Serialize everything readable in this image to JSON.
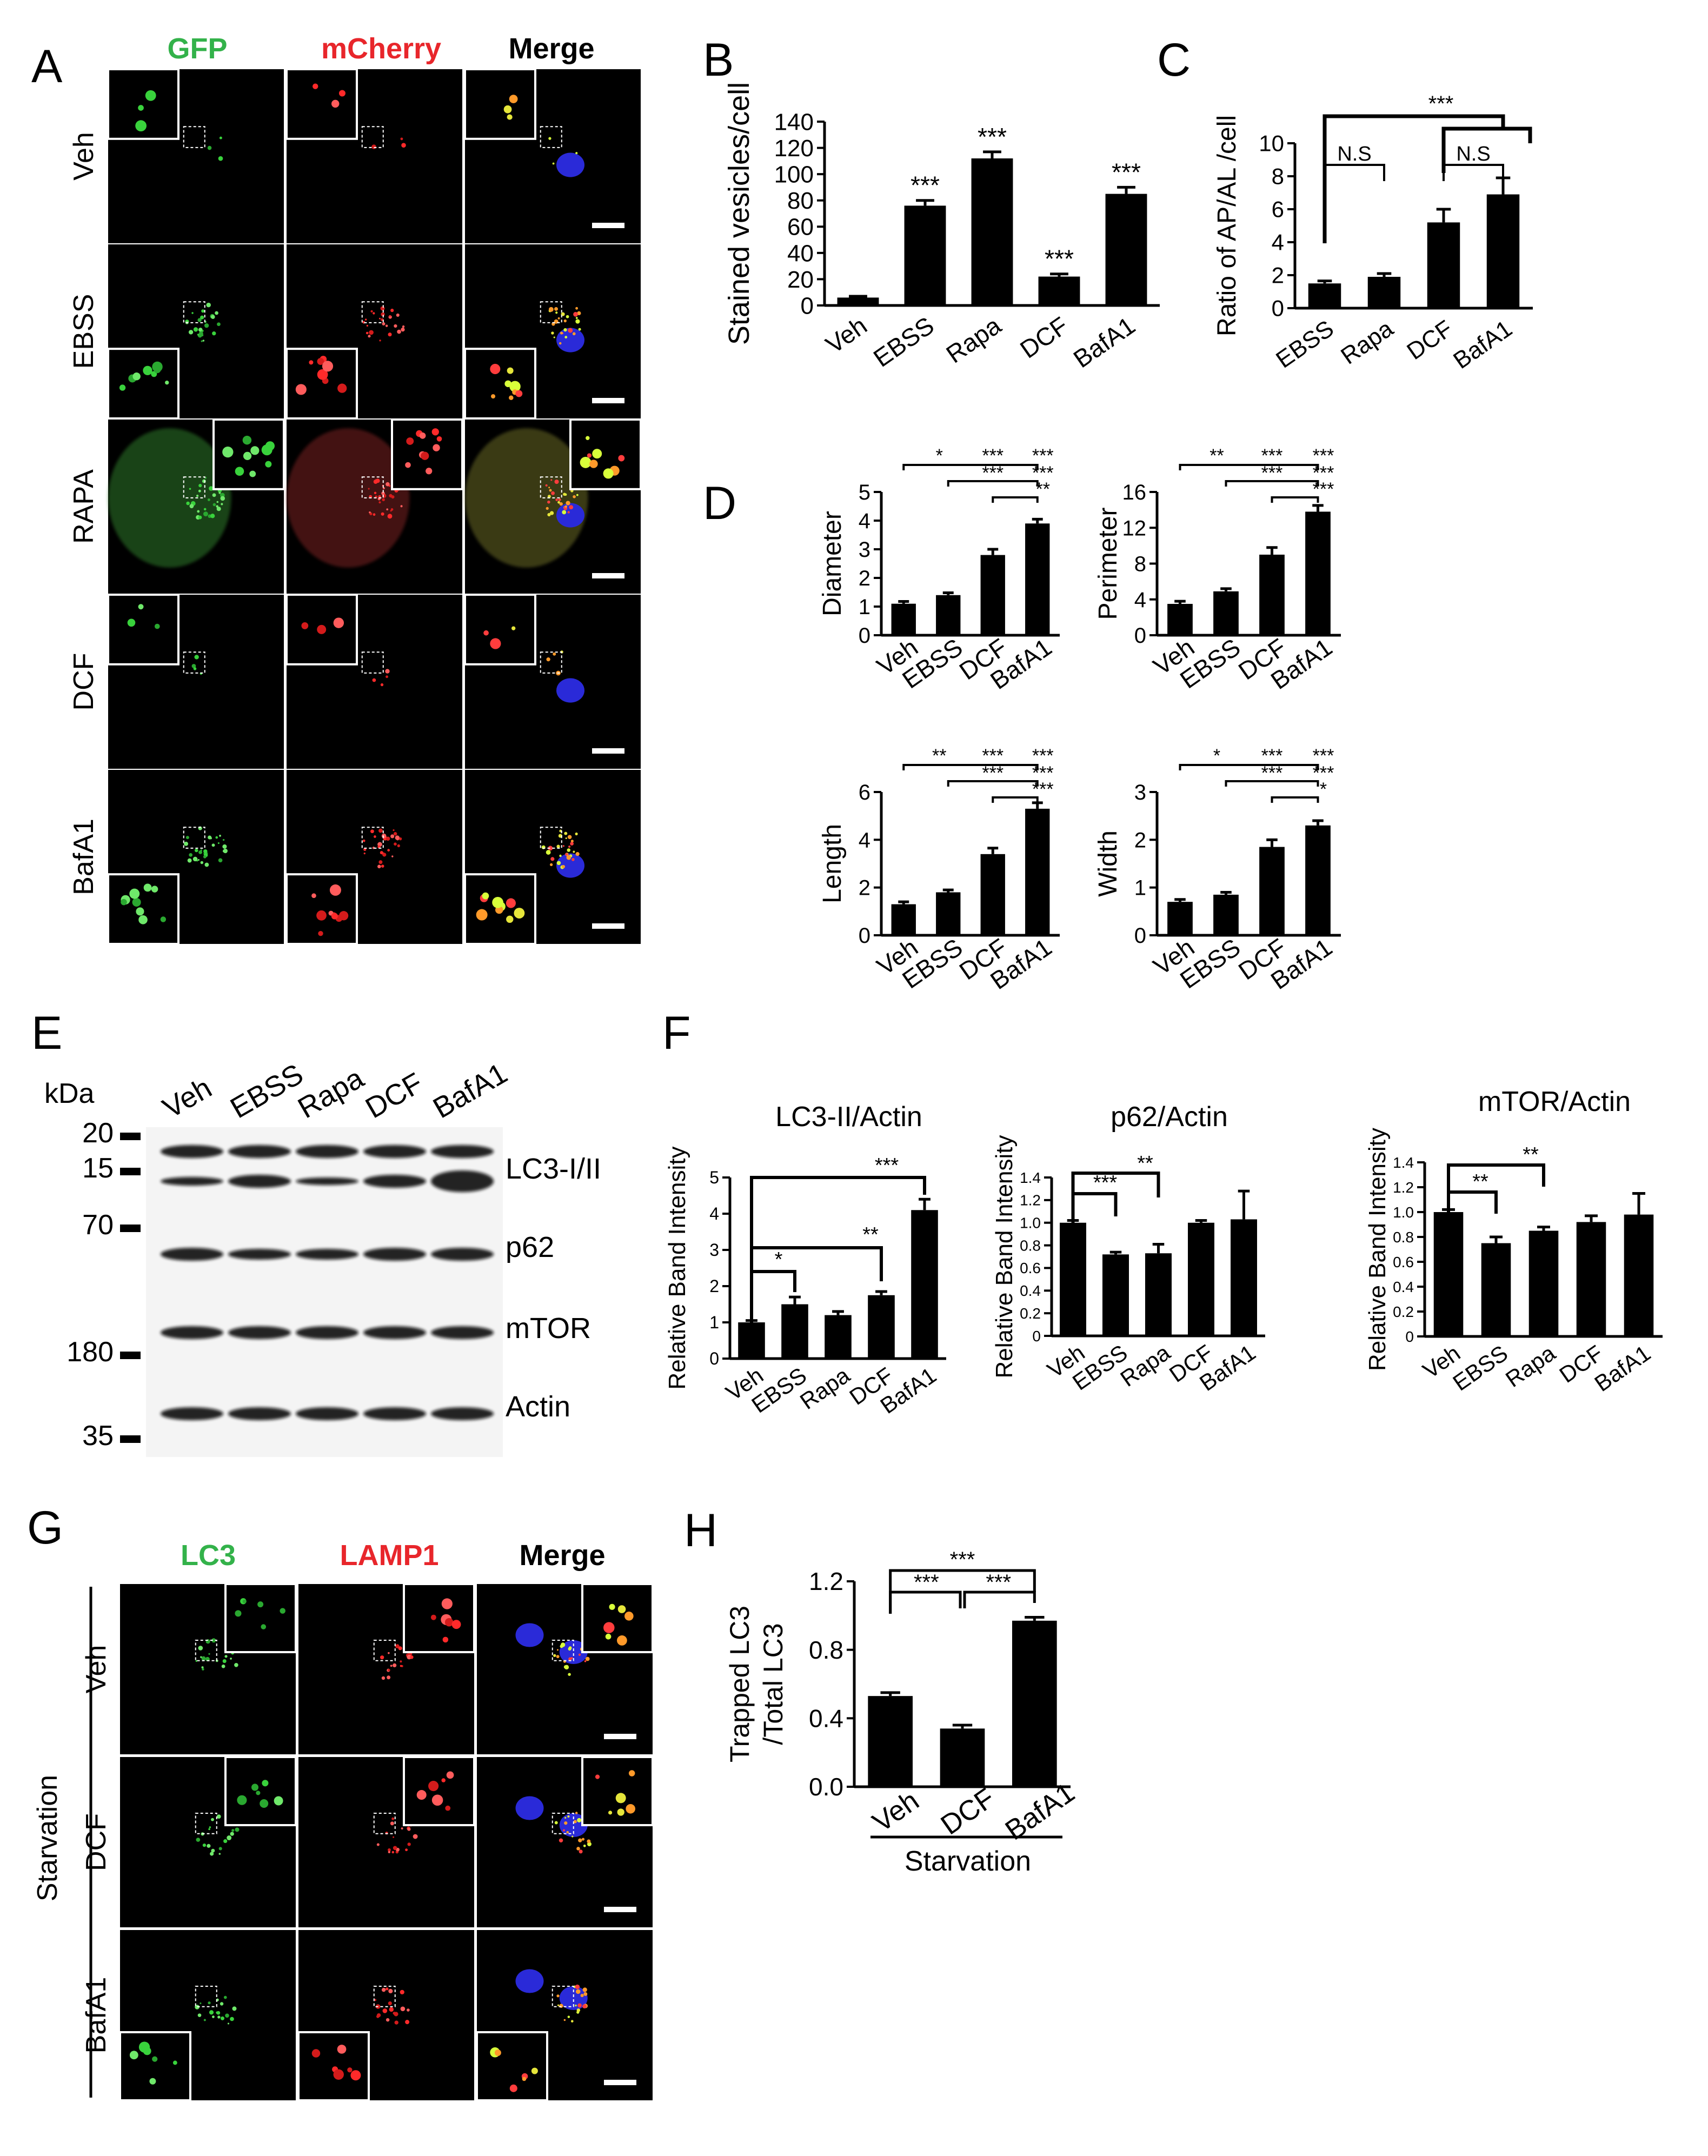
{
  "panels": {
    "A": {
      "label": "A",
      "columns": [
        "GFP",
        "mCherry",
        "Merge"
      ],
      "column_colors": [
        "#33b24a",
        "#e8262b",
        "#000000"
      ],
      "rows": [
        "Veh",
        "EBSS",
        "RAPA",
        "DCF",
        "BafA1"
      ]
    },
    "B": {
      "label": "B"
    },
    "C": {
      "label": "C"
    },
    "D": {
      "label": "D"
    },
    "E": {
      "label": "E",
      "kda_title": "kDa",
      "lanes": [
        "Veh",
        "EBSS",
        "Rapa",
        "DCF",
        "BafA1"
      ],
      "markers": [
        "20",
        "15",
        "70",
        "180",
        "35"
      ],
      "bands": [
        "LC3-I/II",
        "p62",
        "mTOR",
        "Actin"
      ]
    },
    "F": {
      "label": "F"
    },
    "G": {
      "label": "G",
      "columns": [
        "LC3",
        "LAMP1",
        "Merge"
      ],
      "column_colors": [
        "#33b24a",
        "#e8262b",
        "#000000"
      ],
      "rows": [
        "Veh",
        "DCF",
        "BafA1"
      ],
      "group_label": "Starvation"
    },
    "H": {
      "label": "H"
    }
  },
  "chart_data": [
    {
      "id": "B",
      "type": "bar",
      "ylabel": "Stained vesicles/cell",
      "categories": [
        "Veh",
        "EBSS",
        "Rapa",
        "DCF",
        "BafA1"
      ],
      "values": [
        6,
        76,
        112,
        22,
        85
      ],
      "errors": [
        1,
        4,
        5,
        2,
        5
      ],
      "ylim": [
        0,
        140
      ],
      "yticks": [
        "0",
        "20",
        "40",
        "60",
        "80",
        "100",
        "120",
        "140"
      ],
      "significance": [
        "",
        "***",
        "***",
        "***",
        "***"
      ]
    },
    {
      "id": "C",
      "type": "bar",
      "ylabel": "Ratio of AP/AL /cell",
      "categories": [
        "EBSS",
        "Rapa",
        "DCF",
        "BafA1"
      ],
      "values": [
        1.5,
        1.9,
        5.2,
        6.9
      ],
      "errors": [
        0.15,
        0.2,
        0.8,
        1.0
      ],
      "ylim": [
        0,
        10
      ],
      "yticks": [
        "0",
        "2",
        "4",
        "6",
        "8",
        "10"
      ],
      "brackets": [
        {
          "label": "N.S"
        },
        {
          "label": "N.S"
        },
        {
          "label": "***"
        }
      ]
    },
    {
      "id": "D-diameter",
      "type": "bar",
      "ylabel": "Diameter",
      "categories": [
        "Veh",
        "EBSS",
        "DCF",
        "BafA1"
      ],
      "values": [
        1.1,
        1.4,
        2.8,
        3.9
      ],
      "errors": [
        0.08,
        0.08,
        0.2,
        0.15
      ],
      "ylim": [
        0,
        5
      ],
      "yticks": [
        "0",
        "1",
        "2",
        "3",
        "4",
        "5"
      ],
      "brackets": [
        "*",
        "***",
        "***",
        "***",
        "***",
        "**"
      ]
    },
    {
      "id": "D-perimeter",
      "type": "bar",
      "ylabel": "Perimeter",
      "categories": [
        "Veh",
        "EBSS",
        "DCF",
        "BafA1"
      ],
      "values": [
        3.5,
        4.9,
        9.0,
        13.8
      ],
      "errors": [
        0.3,
        0.3,
        0.8,
        0.7
      ],
      "ylim": [
        0,
        16
      ],
      "yticks": [
        "0",
        "4",
        "8",
        "12",
        "16"
      ],
      "brackets": [
        "**",
        "***",
        "***",
        "***",
        "***",
        "***"
      ]
    },
    {
      "id": "D-length",
      "type": "bar",
      "ylabel": "Length",
      "categories": [
        "Veh",
        "EBSS",
        "DCF",
        "BafA1"
      ],
      "values": [
        1.3,
        1.8,
        3.4,
        5.3
      ],
      "errors": [
        0.1,
        0.1,
        0.25,
        0.25
      ],
      "ylim": [
        0,
        6
      ],
      "yticks": [
        "0",
        "2",
        "4",
        "6"
      ],
      "brackets": [
        "**",
        "***",
        "***",
        "***",
        "***",
        "***"
      ]
    },
    {
      "id": "D-width",
      "type": "bar",
      "ylabel": "Width",
      "categories": [
        "Veh",
        "EBSS",
        "DCF",
        "BafA1"
      ],
      "values": [
        0.7,
        0.85,
        1.85,
        2.3
      ],
      "errors": [
        0.05,
        0.05,
        0.15,
        0.1
      ],
      "ylim": [
        0,
        3
      ],
      "yticks": [
        "0",
        "1",
        "2",
        "3"
      ],
      "brackets": [
        "*",
        "***",
        "***",
        "***",
        "***",
        "*"
      ]
    },
    {
      "id": "F-lc3",
      "type": "bar",
      "title": "LC3-II/Actin",
      "ylabel": "Relative Band Intensity",
      "categories": [
        "Veh",
        "EBSS",
        "Rapa",
        "DCF",
        "BafA1"
      ],
      "values": [
        1.0,
        1.5,
        1.2,
        1.75,
        4.1
      ],
      "errors": [
        0.05,
        0.2,
        0.1,
        0.1,
        0.3
      ],
      "ylim": [
        0,
        5
      ],
      "yticks": [
        "0",
        "1",
        "2",
        "3",
        "4",
        "5"
      ],
      "brackets": [
        "***",
        "**",
        "*"
      ]
    },
    {
      "id": "F-p62",
      "type": "bar",
      "title": "p62/Actin",
      "ylabel": "Relative Band Intensity",
      "categories": [
        "Veh",
        "EBSS",
        "Rapa",
        "DCF",
        "BafA1"
      ],
      "values": [
        1.0,
        0.72,
        0.73,
        1.0,
        1.03
      ],
      "errors": [
        0.02,
        0.02,
        0.08,
        0.02,
        0.25
      ],
      "ylim": [
        0,
        1.4
      ],
      "yticks": [
        "0",
        "0.2",
        "0.4",
        "0.6",
        "0.8",
        "1.0",
        "1.2",
        "1.4"
      ],
      "brackets": [
        "**",
        "***"
      ]
    },
    {
      "id": "F-mtor",
      "type": "bar",
      "title": "mTOR/Actin",
      "ylabel": "Relative Band Intensity",
      "categories": [
        "Veh",
        "EBSS",
        "Rapa",
        "DCF",
        "BafA1"
      ],
      "values": [
        1.0,
        0.75,
        0.85,
        0.92,
        0.98
      ],
      "errors": [
        0.02,
        0.05,
        0.03,
        0.05,
        0.17
      ],
      "ylim": [
        0,
        1.4
      ],
      "yticks": [
        "0",
        "0.2",
        "0.4",
        "0.6",
        "0.8",
        "1.0",
        "1.2",
        "1.4"
      ],
      "brackets": [
        "**",
        "**"
      ]
    },
    {
      "id": "H",
      "type": "bar",
      "ylabel": "Trapped LC3 /Total LC3",
      "ylabel_lines": [
        "Trapped LC3",
        "/Total LC3"
      ],
      "categories": [
        "Veh",
        "DCF",
        "BafA1"
      ],
      "values": [
        0.53,
        0.34,
        0.97
      ],
      "errors": [
        0.02,
        0.02,
        0.02
      ],
      "ylim": [
        0,
        1.2
      ],
      "yticks": [
        "0.0",
        "0.4",
        "0.8",
        "1.2"
      ],
      "xgroup_label": "Starvation",
      "brackets": [
        "***",
        "***",
        "***"
      ]
    }
  ]
}
